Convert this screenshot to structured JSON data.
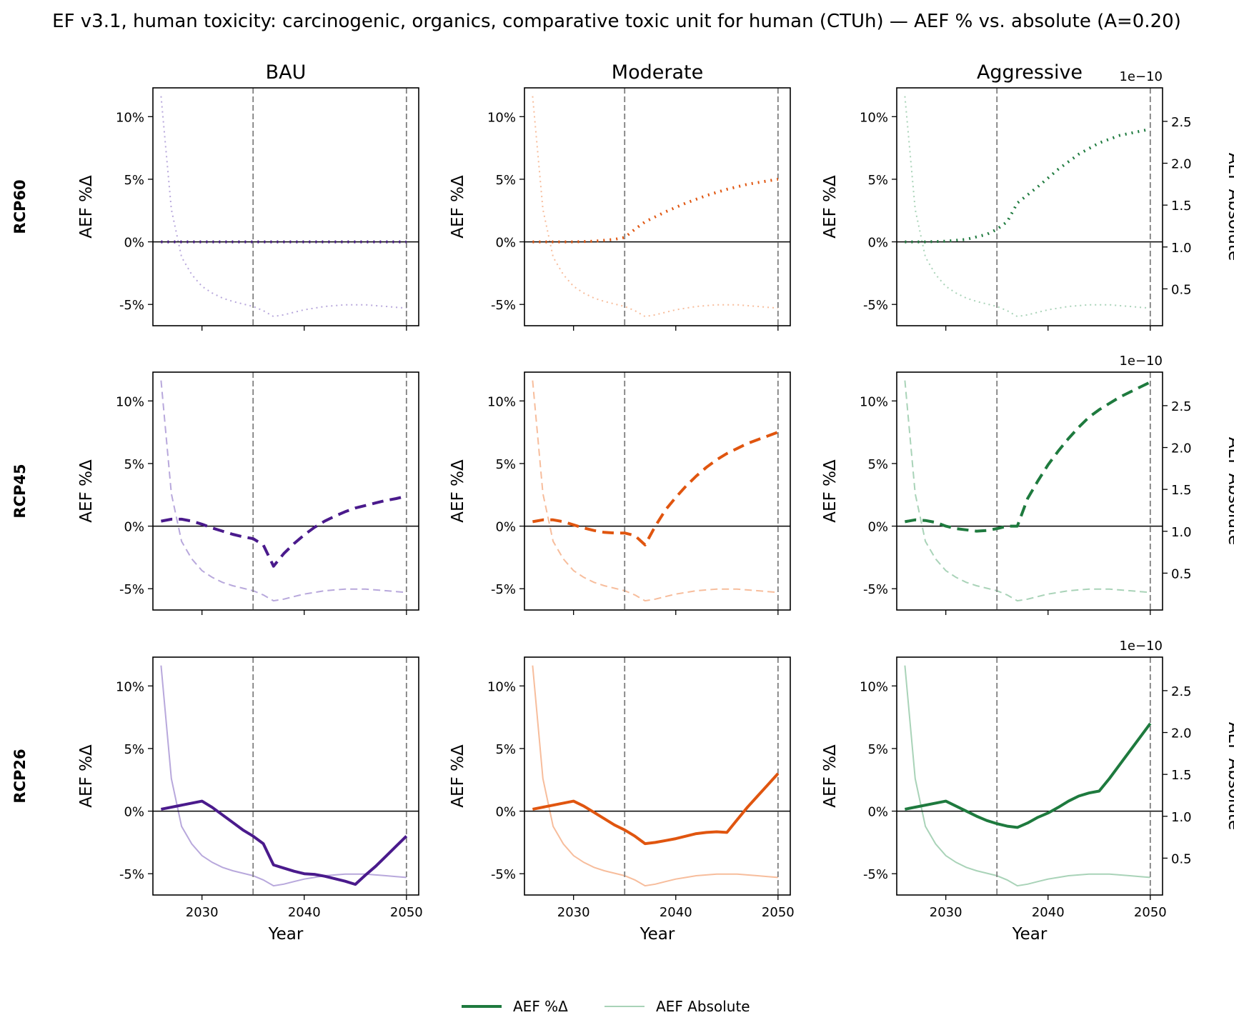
{
  "title": "EF v3.1, human toxicity: carcinogenic, organics, comparative toxic unit for human (CTUh)  —  AEF % vs. absolute (A=0.20)",
  "columns": [
    "BAU",
    "Moderate",
    "Aggressive"
  ],
  "rows": [
    "RCP60",
    "RCP45",
    "RCP26"
  ],
  "colors": {
    "BAU": "#4a1a8c",
    "Moderate": "#e0550f",
    "Aggressive": "#1e7a3e"
  },
  "light_colors": {
    "BAU": "#b8a8dc",
    "Moderate": "#f7bd9c",
    "Aggressive": "#a9d3b8"
  },
  "line_styles": {
    "RCP60": "dotted",
    "RCP45": "dashed",
    "RCP26": "solid"
  },
  "left_ylabel": "AEF %Δ",
  "right_ylabel": "AEF Absolute",
  "right_offset": "1e−10",
  "xlabel": "Year",
  "legend": {
    "items": [
      "AEF %Δ",
      "AEF Absolute"
    ],
    "placement": "bottom-center"
  },
  "chart_data": {
    "type": "line",
    "title": "EF v3.1, human toxicity: carcinogenic, organics, comparative toxic unit for human (CTUh)  —  AEF % vs. absolute (A=0.20)",
    "xlabel": "Year",
    "ylabel_left": "AEF %Δ",
    "ylabel_right": "AEF Absolute",
    "right_axis_scale": "1e-10",
    "xlim": [
      2025.2,
      2051.2
    ],
    "ylim_left": [
      -6.7,
      12.3
    ],
    "ylim_right": [
      0.06,
      2.9
    ],
    "xticks": [
      2030,
      2040,
      2050
    ],
    "yticks_left": [
      10,
      5,
      0,
      -5
    ],
    "ytick_labels_left": [
      "10%",
      "5%",
      "0%",
      "-5%"
    ],
    "yticks_right": [
      2.5,
      2.0,
      1.5,
      1.0,
      0.5
    ],
    "ytick_labels_right": [
      "2.5",
      "2.0",
      "1.5",
      "1.0",
      "0.5"
    ],
    "vlines": [
      2035,
      2050
    ],
    "hline": 0,
    "absolute_series": {
      "name": "AEF Absolute",
      "units": "1e-10",
      "x": [
        2026,
        2027,
        2028,
        2029,
        2030,
        2031,
        2032,
        2033,
        2034,
        2035,
        2036,
        2037,
        2038,
        2039,
        2040,
        2041,
        2042,
        2043,
        2044,
        2045,
        2046,
        2047,
        2048,
        2049,
        2050
      ],
      "values": [
        2.8,
        1.45,
        0.88,
        0.67,
        0.53,
        0.45,
        0.39,
        0.35,
        0.32,
        0.29,
        0.24,
        0.17,
        0.19,
        0.22,
        0.25,
        0.27,
        0.29,
        0.3,
        0.31,
        0.31,
        0.31,
        0.3,
        0.29,
        0.28,
        0.27
      ]
    },
    "panels": [
      {
        "row": "RCP60",
        "column": "BAU",
        "style": "dotted",
        "x": [
          2026,
          2028,
          2030,
          2032,
          2034,
          2035,
          2036,
          2037,
          2040,
          2043,
          2046,
          2050
        ],
        "values": [
          0,
          0,
          0,
          0,
          0,
          0,
          0,
          0,
          0,
          0,
          0,
          0
        ]
      },
      {
        "row": "RCP60",
        "column": "Moderate",
        "style": "dotted",
        "x": [
          2026,
          2028,
          2030,
          2032,
          2034,
          2035,
          2036,
          2037,
          2039,
          2041,
          2043,
          2045,
          2047,
          2050
        ],
        "values": [
          0,
          0,
          0,
          0.05,
          0.2,
          0.35,
          1.0,
          1.6,
          2.4,
          3.1,
          3.7,
          4.2,
          4.6,
          5.0
        ]
      },
      {
        "row": "RCP60",
        "column": "Aggressive",
        "style": "dotted",
        "x": [
          2026,
          2028,
          2030,
          2032,
          2034,
          2035,
          2036,
          2037,
          2039,
          2041,
          2043,
          2045,
          2047,
          2050
        ],
        "values": [
          0,
          0,
          0.05,
          0.2,
          0.6,
          1.0,
          1.6,
          3.1,
          4.4,
          5.8,
          7.0,
          7.9,
          8.5,
          9.0
        ]
      },
      {
        "row": "RCP45",
        "column": "BAU",
        "style": "dashed",
        "x": [
          2026,
          2027,
          2028,
          2029,
          2030,
          2031,
          2032,
          2033,
          2034,
          2035,
          2036,
          2037,
          2038,
          2039,
          2040,
          2041,
          2042,
          2043,
          2044,
          2045,
          2046,
          2047,
          2048,
          2049,
          2050
        ],
        "values": [
          0.4,
          0.55,
          0.55,
          0.4,
          0.15,
          -0.15,
          -0.4,
          -0.65,
          -0.85,
          -1.0,
          -1.5,
          -3.2,
          -2.2,
          -1.4,
          -0.7,
          -0.1,
          0.4,
          0.8,
          1.15,
          1.45,
          1.65,
          1.85,
          2.05,
          2.2,
          2.4
        ]
      },
      {
        "row": "RCP45",
        "column": "Moderate",
        "style": "dashed",
        "x": [
          2026,
          2027,
          2028,
          2029,
          2030,
          2031,
          2032,
          2033,
          2034,
          2035,
          2036,
          2037,
          2038,
          2039,
          2040,
          2041,
          2042,
          2043,
          2044,
          2045,
          2046,
          2047,
          2048,
          2049,
          2050
        ],
        "values": [
          0.35,
          0.5,
          0.5,
          0.35,
          0.1,
          -0.15,
          -0.35,
          -0.5,
          -0.55,
          -0.55,
          -0.75,
          -1.5,
          0.0,
          1.3,
          2.3,
          3.2,
          4.0,
          4.7,
          5.3,
          5.8,
          6.2,
          6.6,
          6.9,
          7.2,
          7.5
        ]
      },
      {
        "row": "RCP45",
        "column": "Aggressive",
        "style": "dashed",
        "x": [
          2026,
          2027,
          2028,
          2029,
          2030,
          2031,
          2032,
          2033,
          2034,
          2035,
          2036,
          2037,
          2038,
          2039,
          2040,
          2041,
          2042,
          2043,
          2044,
          2045,
          2046,
          2047,
          2048,
          2049,
          2050
        ],
        "values": [
          0.35,
          0.5,
          0.45,
          0.3,
          0.0,
          -0.2,
          -0.3,
          -0.4,
          -0.35,
          -0.2,
          0.0,
          0.0,
          2.2,
          3.6,
          4.9,
          6.0,
          7.0,
          7.9,
          8.7,
          9.3,
          9.8,
          10.3,
          10.7,
          11.1,
          11.5
        ]
      },
      {
        "row": "RCP26",
        "column": "BAU",
        "style": "solid",
        "x": [
          2026,
          2030,
          2031,
          2032,
          2033,
          2034,
          2035,
          2036,
          2037,
          2038,
          2039,
          2040,
          2041,
          2042,
          2043,
          2044,
          2045,
          2046,
          2047,
          2048,
          2049,
          2050
        ],
        "values": [
          0.15,
          0.8,
          0.3,
          -0.3,
          -0.9,
          -1.5,
          -2.0,
          -2.6,
          -4.3,
          -4.55,
          -4.8,
          -5.0,
          -5.05,
          -5.2,
          -5.4,
          -5.6,
          -5.85,
          -5.1,
          -4.4,
          -3.6,
          -2.8,
          -2.0
        ]
      },
      {
        "row": "RCP26",
        "column": "Moderate",
        "style": "solid",
        "x": [
          2026,
          2030,
          2031,
          2032,
          2033,
          2034,
          2035,
          2036,
          2037,
          2038,
          2039,
          2040,
          2041,
          2042,
          2043,
          2044,
          2045,
          2046,
          2047,
          2048,
          2049,
          2050
        ],
        "values": [
          0.15,
          0.8,
          0.4,
          -0.1,
          -0.6,
          -1.1,
          -1.5,
          -2.0,
          -2.6,
          -2.5,
          -2.35,
          -2.2,
          -2.0,
          -1.8,
          -1.7,
          -1.65,
          -1.7,
          -0.7,
          0.3,
          1.2,
          2.1,
          3.0
        ]
      },
      {
        "row": "RCP26",
        "column": "Aggressive",
        "style": "solid",
        "x": [
          2026,
          2030,
          2031,
          2032,
          2033,
          2034,
          2035,
          2036,
          2037,
          2038,
          2039,
          2040,
          2041,
          2042,
          2043,
          2044,
          2045,
          2046,
          2047,
          2048,
          2049,
          2050
        ],
        "values": [
          0.15,
          0.8,
          0.4,
          0.0,
          -0.4,
          -0.75,
          -1.0,
          -1.2,
          -1.3,
          -0.95,
          -0.5,
          -0.15,
          0.3,
          0.8,
          1.2,
          1.45,
          1.6,
          2.6,
          3.7,
          4.8,
          5.9,
          7.0
        ]
      }
    ]
  }
}
